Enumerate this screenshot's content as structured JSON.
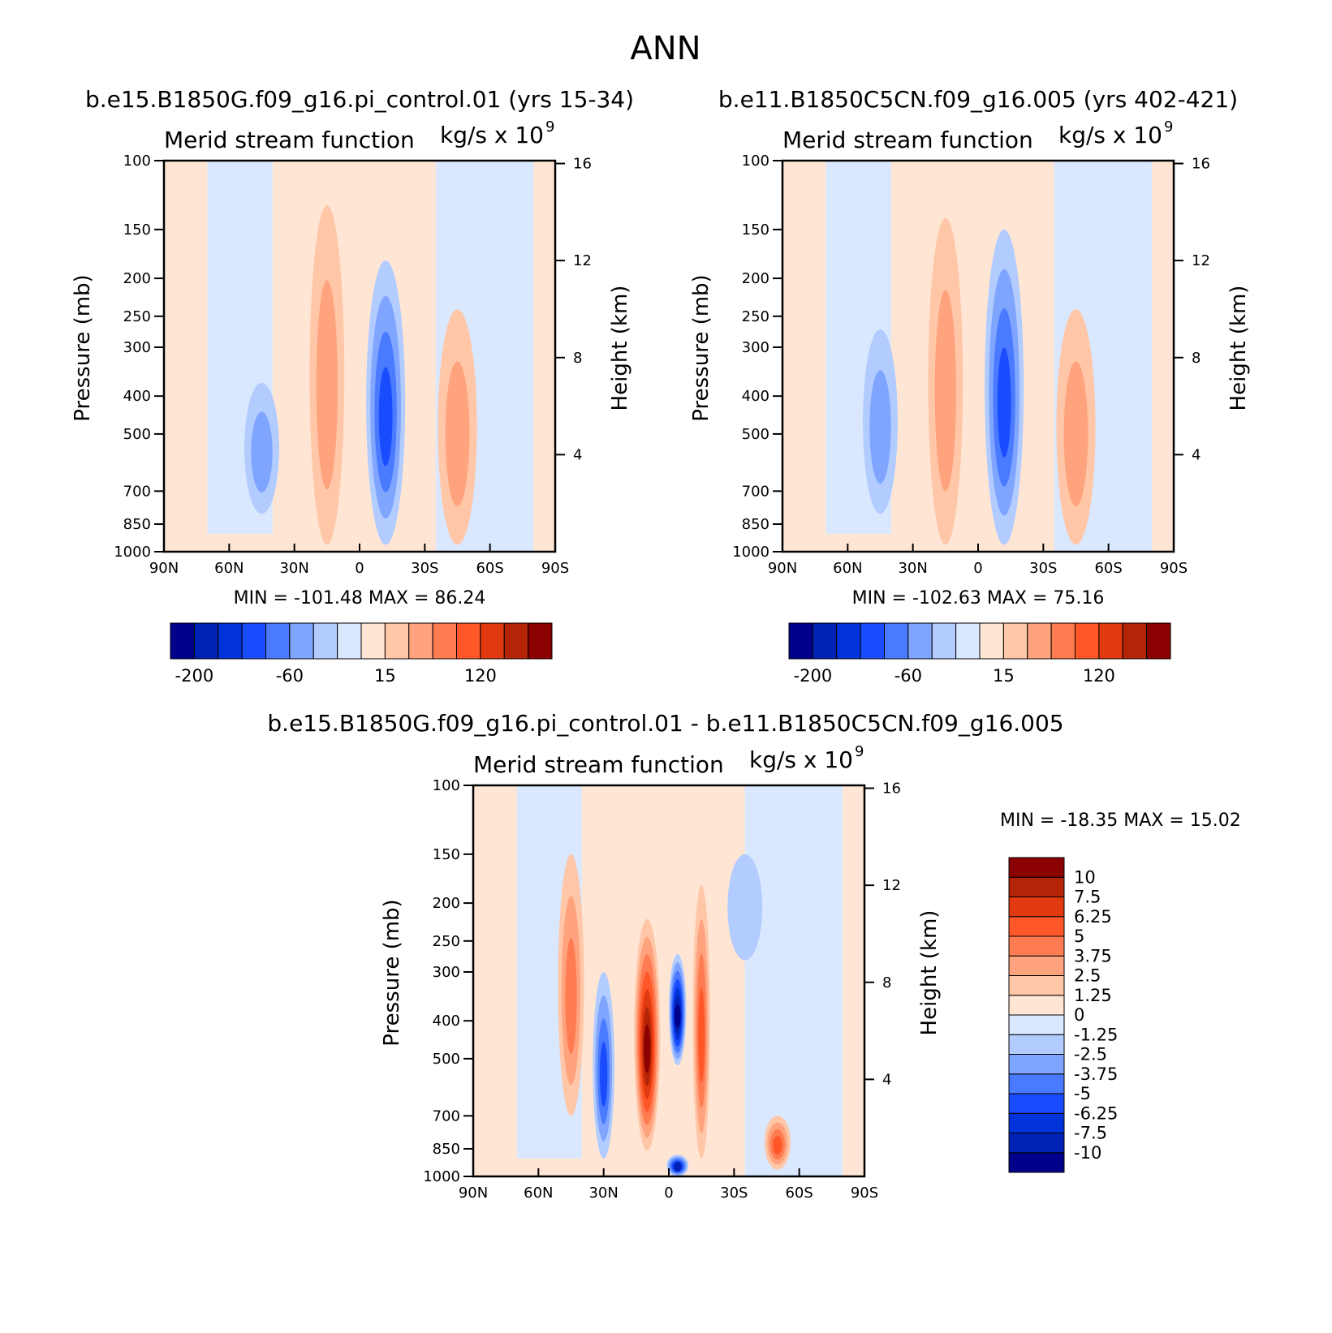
{
  "title": "ANN",
  "colors": {
    "divergent": [
      "#00008b",
      "#0022b4",
      "#0033d9",
      "#1a4cff",
      "#4a7aff",
      "#7fa5ff",
      "#b3ccff",
      "#d9e8ff",
      "#ffe6d4",
      "#ffc7a8",
      "#ffa37e",
      "#ff7c52",
      "#ff5728",
      "#e13a10",
      "#b42406",
      "#8b0000"
    ],
    "diff": [
      "#00008b",
      "#0022b4",
      "#0033d9",
      "#1a4cff",
      "#4a7aff",
      "#7fa5ff",
      "#b3ccff",
      "#d9e8ff",
      "#ffe6d4",
      "#ffc7a8",
      "#ffa37e",
      "#ff7c52",
      "#ff5728",
      "#e13a10",
      "#b42406",
      "#8b0000"
    ]
  },
  "chart_data": [
    {
      "type": "heatmap",
      "id": "p1",
      "title": "b.e15.B1850G.f09_g16.pi_control.01 (yrs 15-34)",
      "subtitle_left": "Merid stream function",
      "subtitle_right": "kg/s x 10",
      "subtitle_exp": "9",
      "ylabel": "Pressure (mb)",
      "y2label": "Height (km)",
      "x_ticks": [
        "90N",
        "60N",
        "30N",
        "0",
        "30S",
        "60S",
        "90S"
      ],
      "x_values": [
        90,
        60,
        30,
        0,
        -30,
        -60,
        -90
      ],
      "y_ticks": [
        "100",
        "150",
        "200",
        "250",
        "300",
        "400",
        "500",
        "700",
        "850",
        "1000"
      ],
      "y_values": [
        100,
        150,
        200,
        250,
        300,
        400,
        500,
        700,
        850,
        1000
      ],
      "y2_ticks": [
        "16",
        "12",
        "8",
        "4"
      ],
      "y2_values": [
        16,
        12,
        8,
        4
      ],
      "min_label": "MIN = -101.48",
      "max_label": "MAX = 86.24",
      "min": -101.48,
      "max": 86.24,
      "colorbar_labels": [
        "-200",
        "-60",
        "15",
        "120"
      ],
      "cells": [
        {
          "lat": 45,
          "p_top": 370,
          "p_bot": 800,
          "lat_w": 8,
          "value": -20
        },
        {
          "lat": 15,
          "p_top": 130,
          "p_bot": 960,
          "lat_w": 8,
          "value": 55
        },
        {
          "lat": -12,
          "p_top": 180,
          "p_bot": 960,
          "lat_w": 9,
          "value": -90
        },
        {
          "lat": -45,
          "p_top": 240,
          "p_bot": 960,
          "lat_w": 9,
          "value": 35
        }
      ]
    },
    {
      "type": "heatmap",
      "id": "p2",
      "title": "b.e11.B1850C5CN.f09_g16.005 (yrs 402-421)",
      "subtitle_left": "Merid stream function",
      "subtitle_right": "kg/s x 10",
      "subtitle_exp": "9",
      "ylabel": "Pressure (mb)",
      "y2label": "Height (km)",
      "x_ticks": [
        "90N",
        "60N",
        "30N",
        "0",
        "30S",
        "60S",
        "90S"
      ],
      "x_values": [
        90,
        60,
        30,
        0,
        -30,
        -60,
        -90
      ],
      "y_ticks": [
        "100",
        "150",
        "200",
        "250",
        "300",
        "400",
        "500",
        "700",
        "850",
        "1000"
      ],
      "y_values": [
        100,
        150,
        200,
        250,
        300,
        400,
        500,
        700,
        850,
        1000
      ],
      "y2_ticks": [
        "16",
        "12",
        "8",
        "4"
      ],
      "y2_values": [
        16,
        12,
        8,
        4
      ],
      "min_label": "MIN = -102.63",
      "max_label": "MAX = 75.16",
      "min": -102.63,
      "max": 75.16,
      "colorbar_labels": [
        "-200",
        "-60",
        "15",
        "120"
      ],
      "cells": [
        {
          "lat": 45,
          "p_top": 270,
          "p_bot": 800,
          "lat_w": 8,
          "value": -20
        },
        {
          "lat": 15,
          "p_top": 140,
          "p_bot": 960,
          "lat_w": 8,
          "value": 50
        },
        {
          "lat": -12,
          "p_top": 150,
          "p_bot": 960,
          "lat_w": 9,
          "value": -90
        },
        {
          "lat": -45,
          "p_top": 240,
          "p_bot": 960,
          "lat_w": 9,
          "value": 30
        }
      ]
    },
    {
      "type": "heatmap",
      "id": "p3",
      "title": "b.e15.B1850G.f09_g16.pi_control.01 - b.e11.B1850C5CN.f09_g16.005",
      "subtitle_left": "Merid stream function",
      "subtitle_right": "kg/s x 10",
      "subtitle_exp": "9",
      "ylabel": "Pressure (mb)",
      "y2label": "Height (km)",
      "x_ticks": [
        "90N",
        "60N",
        "30N",
        "0",
        "30S",
        "60S",
        "90S"
      ],
      "x_values": [
        90,
        60,
        30,
        0,
        -30,
        -60,
        -90
      ],
      "y_ticks": [
        "100",
        "150",
        "200",
        "250",
        "300",
        "400",
        "500",
        "700",
        "850",
        "1000"
      ],
      "y_values": [
        100,
        150,
        200,
        250,
        300,
        400,
        500,
        700,
        850,
        1000
      ],
      "y2_ticks": [
        "16",
        "12",
        "8",
        "4"
      ],
      "y2_values": [
        16,
        12,
        8,
        4
      ],
      "min_label": "MIN = -18.35",
      "max_label": "MAX = 15.02",
      "min": -18.35,
      "max": 15.02,
      "colorbar_labels": [
        "10",
        "7.5",
        "6.25",
        "5",
        "3.75",
        "2.5",
        "1.25",
        "0",
        "-1.25",
        "-2.5",
        "-3.75",
        "-5",
        "-6.25",
        "-7.5",
        "-10"
      ],
      "cells": [
        {
          "lat": 45,
          "p_top": 150,
          "p_bot": 700,
          "lat_w": 6,
          "value": 4
        },
        {
          "lat": 30,
          "p_top": 300,
          "p_bot": 900,
          "lat_w": 5,
          "value": -5
        },
        {
          "lat": 10,
          "p_top": 220,
          "p_bot": 860,
          "lat_w": 6,
          "value": 12
        },
        {
          "lat": -4,
          "p_top": 270,
          "p_bot": 520,
          "lat_w": 4,
          "value": -10
        },
        {
          "lat": -4,
          "p_top": 880,
          "p_bot": 1000,
          "lat_w": 5,
          "value": -9
        },
        {
          "lat": -15,
          "p_top": 180,
          "p_bot": 900,
          "lat_w": 4,
          "value": 5
        },
        {
          "lat": -35,
          "p_top": 150,
          "p_bot": 280,
          "lat_w": 8,
          "value": -2
        },
        {
          "lat": -50,
          "p_top": 700,
          "p_bot": 960,
          "lat_w": 6,
          "value": 6
        }
      ]
    }
  ]
}
